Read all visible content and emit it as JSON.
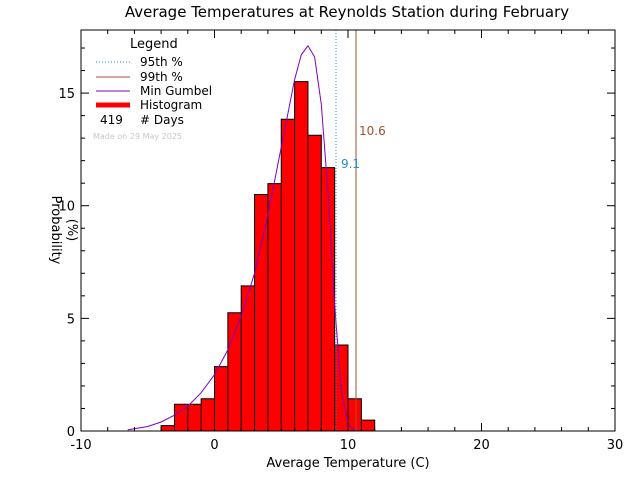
{
  "chart_data": {
    "type": "bar",
    "title": "Average Temperatures at Reynolds Station during February",
    "xlabel": "Average Temperature (C)",
    "ylabel_line1": "Probability",
    "ylabel_line2": "(%)",
    "xlim": [
      -10,
      30
    ],
    "ylim": [
      0,
      17.8
    ],
    "xticks": [
      -10,
      0,
      10,
      20,
      30
    ],
    "yticks": [
      0,
      5,
      10,
      15
    ],
    "histogram": {
      "bin_edges": [
        -4,
        -3,
        -2,
        -1,
        0,
        1,
        2,
        3,
        4,
        5,
        6,
        7,
        8,
        9,
        10,
        11,
        12
      ],
      "values": [
        0.24,
        1.19,
        1.19,
        1.43,
        2.86,
        5.25,
        6.44,
        10.5,
        10.98,
        13.84,
        15.51,
        13.13,
        11.69,
        3.82,
        1.43,
        0.48
      ]
    },
    "gumbel_curve": {
      "x": [
        -6.5,
        -5,
        -4,
        -3,
        -2,
        -1,
        0,
        1,
        2,
        3,
        4,
        5,
        6,
        6.5,
        7,
        7.5,
        8,
        8.5,
        9,
        9.5,
        10,
        10.5
      ],
      "y": [
        0.05,
        0.2,
        0.4,
        0.7,
        1.1,
        1.7,
        2.5,
        3.6,
        5.1,
        7.0,
        9.6,
        12.6,
        15.6,
        16.7,
        17.1,
        16.6,
        14.5,
        10.6,
        5.6,
        1.8,
        0.3,
        0.0
      ]
    },
    "p95": {
      "value": 9.1,
      "label": "9.1"
    },
    "p99": {
      "value": 10.6,
      "label": "10.6"
    },
    "colors": {
      "histogram": "#ff0000",
      "gumbel": "#8000c0",
      "p95": "#1e90c8",
      "p99": "#a0522d"
    },
    "legend": {
      "title": "Legend",
      "entries": [
        "95th %",
        "99th %",
        "Min Gumbel",
        "Histogram"
      ],
      "days_count": "419",
      "days_label": "# Days",
      "made_on": "Made on 29 May 2025"
    }
  }
}
